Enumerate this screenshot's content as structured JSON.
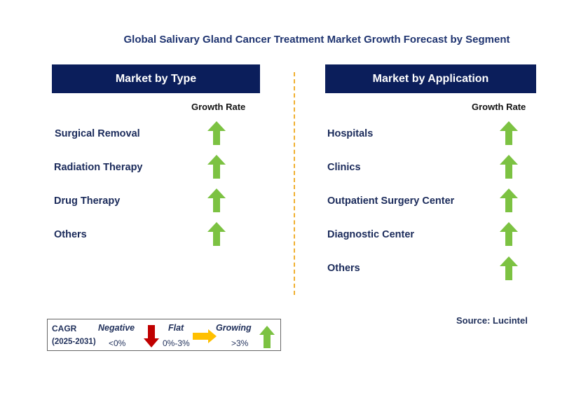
{
  "title": "Global Salivary Gland Cancer Treatment Market Growth Forecast by Segment",
  "growth_rate_label": "Growth Rate",
  "left_panel": {
    "header": "Market by Type",
    "items": [
      {
        "label": "Surgical Removal",
        "trend": "growing"
      },
      {
        "label": "Radiation Therapy",
        "trend": "growing"
      },
      {
        "label": "Drug Therapy",
        "trend": "growing"
      },
      {
        "label": "Others",
        "trend": "growing"
      }
    ]
  },
  "right_panel": {
    "header": "Market by Application",
    "items": [
      {
        "label": "Hospitals",
        "trend": "growing"
      },
      {
        "label": "Clinics",
        "trend": "growing"
      },
      {
        "label": "Outpatient Surgery Center",
        "trend": "growing"
      },
      {
        "label": "Diagnostic Center",
        "trend": "growing"
      },
      {
        "label": "Others",
        "trend": "growing"
      }
    ]
  },
  "legend": {
    "cagr": "CAGR",
    "period": "(2025-2031)",
    "negative": {
      "label": "Negative",
      "range": "<0%",
      "icon": "down-arrow-icon"
    },
    "flat": {
      "label": "Flat",
      "range": "0%-3%",
      "icon": "right-arrow-icon"
    },
    "growing": {
      "label": "Growing",
      "range": ">3%",
      "icon": "up-arrow-icon"
    }
  },
  "source": "Source: Lucintel",
  "colors": {
    "header_bg": "#0b1e5b",
    "growing": "#7cc242",
    "negative": "#c00000",
    "flat": "#ffc000",
    "divider": "#f0b030"
  }
}
